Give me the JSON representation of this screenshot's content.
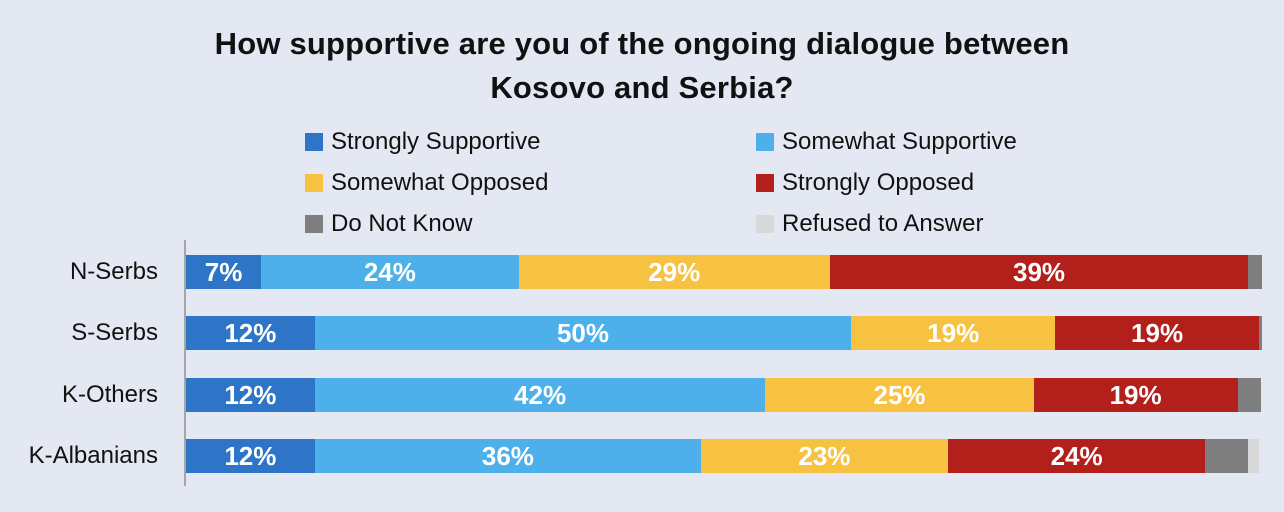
{
  "chart_data": {
    "type": "bar",
    "orientation": "horizontal",
    "stacked": true,
    "title_lines": [
      "How supportive are you of the ongoing dialogue between",
      "Kosovo and Serbia?"
    ],
    "categories": [
      "N-Serbs",
      "S-Serbs",
      "K-Others",
      "K-Albanians"
    ],
    "series": [
      {
        "name": "Strongly Supportive",
        "color": "#2e75c7",
        "values": [
          7,
          12,
          12,
          12
        ],
        "labels": [
          "7%",
          "12%",
          "12%",
          "12%"
        ]
      },
      {
        "name": "Somewhat Supportive",
        "color": "#4eb0ea",
        "values": [
          24,
          50,
          42,
          36
        ],
        "labels": [
          "24%",
          "50%",
          "42%",
          "36%"
        ]
      },
      {
        "name": "Somewhat Opposed",
        "color": "#f7c142",
        "values": [
          29,
          19,
          25,
          23
        ],
        "labels": [
          "29%",
          "19%",
          "25%",
          "23%"
        ]
      },
      {
        "name": "Strongly Opposed",
        "color": "#b3201c",
        "values": [
          39,
          19,
          19,
          24
        ],
        "labels": [
          "39%",
          "19%",
          "19%",
          "24%"
        ]
      },
      {
        "name": "Do Not Know",
        "color": "#7f7f7f",
        "values": [
          1.3,
          0.3,
          2.2,
          4
        ],
        "labels": [
          "",
          "",
          "",
          ""
        ]
      },
      {
        "name": "Refused to Answer",
        "color": "#d9d9d9",
        "values": [
          0,
          0,
          0,
          1
        ],
        "labels": [
          "",
          "",
          "",
          ""
        ]
      }
    ],
    "xlim": [
      0,
      100
    ],
    "legend_position": "top",
    "grid": false
  }
}
